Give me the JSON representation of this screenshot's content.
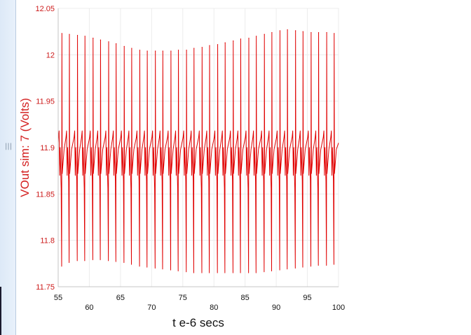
{
  "window": {
    "splitter_icon": "grip-vertical-icon",
    "grip_glyph": "|||"
  },
  "chart_data": {
    "type": "line",
    "title": "",
    "xlabel": "t e-6 secs",
    "ylabel": "VOut sim:  7 (Volts)",
    "xlim": [
      55,
      100
    ],
    "ylim": [
      11.75,
      12.05
    ],
    "x_ticks_lower": [
      "55",
      "65",
      "75",
      "85",
      "95"
    ],
    "x_tick_values_lower": [
      55,
      65,
      75,
      85,
      95
    ],
    "x_ticks_upper": [
      "60",
      "70",
      "80",
      "90",
      "100"
    ],
    "x_tick_values_upper": [
      60,
      70,
      80,
      90,
      100
    ],
    "y_ticks": [
      "11.75",
      "11.8",
      "11.85",
      "11.9",
      "11.95",
      "12",
      "12.05"
    ],
    "y_tick_values": [
      11.75,
      11.8,
      11.85,
      11.9,
      11.95,
      12,
      12.05
    ],
    "grid": true,
    "line_color": "#e00000",
    "series": [
      {
        "waveform": "periodic switching ripple with spikes",
        "spike_times": [
          55.6,
          56.8,
          58.1,
          59.3,
          60.6,
          61.8,
          63.1,
          64.3,
          65.6,
          66.8,
          68.1,
          69.3,
          70.6,
          71.8,
          73.1,
          74.3,
          75.6,
          76.8,
          78.1,
          79.3,
          80.6,
          81.8,
          83.1,
          84.3,
          85.6,
          86.8,
          88.1,
          89.3,
          90.6,
          91.8,
          93.1,
          94.3,
          95.6,
          96.8,
          98.1,
          99.3
        ],
        "spike_max": [
          12.023,
          12.022,
          12.021,
          12.02,
          12.018,
          12.016,
          12.014,
          12.012,
          12.009,
          12.007,
          12.005,
          12.004,
          12.004,
          12.004,
          12.004,
          12.005,
          12.005,
          12.007,
          12.008,
          12.01,
          12.011,
          12.013,
          12.015,
          12.017,
          12.018,
          12.02,
          12.022,
          12.024,
          12.026,
          12.027,
          12.026,
          12.025,
          12.024,
          12.024,
          12.024,
          12.023
        ],
        "spike_min": [
          11.772,
          11.776,
          11.778,
          11.778,
          11.779,
          11.779,
          11.778,
          11.777,
          11.776,
          11.774,
          11.772,
          11.771,
          11.77,
          11.769,
          11.768,
          11.767,
          11.766,
          11.765,
          11.765,
          11.765,
          11.765,
          11.765,
          11.765,
          11.765,
          11.765,
          11.765,
          11.766,
          11.767,
          11.768,
          11.769,
          11.77,
          11.771,
          11.772,
          11.773,
          11.773,
          11.774
        ],
        "ripple_high": 11.915,
        "ripple_low": 11.862
      }
    ]
  }
}
